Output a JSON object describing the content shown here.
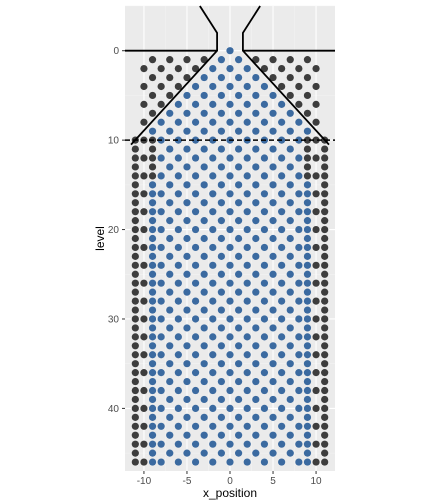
{
  "chart_data": {
    "type": "scatter",
    "title": "",
    "xlabel": "x_position",
    "ylabel": "level",
    "xlim": [
      -12.2,
      12.2
    ],
    "ylim": [
      47.0,
      -5.0
    ],
    "y_reversed": true,
    "x_ticks": [
      -10,
      -5,
      0,
      5,
      10
    ],
    "x_tick_labels": [
      "-10",
      "-5",
      "0",
      "5",
      "10"
    ],
    "y_ticks": [
      0,
      10,
      20,
      30,
      40
    ],
    "y_tick_labels": [
      "0",
      "10",
      "20",
      "30",
      "40"
    ],
    "grid": true,
    "legend": "none",
    "colors": {
      "panel_background": "#ebebeb",
      "grid_major": "#ffffff",
      "grid_minor": "#f2f2f2",
      "occupied_point": "#3b6aa0",
      "empty_point": "#3d3d3d",
      "wall_line": "#000000"
    },
    "series": [
      {
        "role": "empty",
        "rule": "points at integer level y from 1 to 46; for y <= 9 (funnel zone) x in {-10, -9, ..., 10} with x-parity equal to y-parity, shown only outside the funnel walls (|x| > y + 1); for y >= 10 (bin zone) x in {-11, -9, ..., 11}, odd x only, shown where not occupied"
      },
      {
        "role": "occupied",
        "rule": "points at integer level y with x-parity equal to y-parity; for y <= 9 within funnel |x| <= y + 1; for y >= 10 filled columns |x| <= 9, column x = +/-9 filled only from y = 15 downward"
      }
    ],
    "walls": [
      {
        "name": "left-funnel-wall",
        "points": [
          [
            -11.5,
            10.5
          ],
          [
            -1.5,
            0
          ],
          [
            -1.5,
            -2
          ],
          [
            -3.5,
            -5
          ]
        ]
      },
      {
        "name": "right-funnel-wall",
        "points": [
          [
            11.5,
            10.5
          ],
          [
            1.5,
            0
          ],
          [
            1.5,
            -2
          ],
          [
            3.5,
            -5
          ]
        ]
      },
      {
        "name": "left-top-ledge",
        "points": [
          [
            -12.2,
            0
          ],
          [
            -1.5,
            0
          ]
        ]
      },
      {
        "name": "right-top-ledge",
        "points": [
          [
            1.5,
            0
          ],
          [
            12.2,
            0
          ]
        ]
      },
      {
        "name": "bin-boundary-dashed",
        "points": [
          [
            -12.2,
            10
          ],
          [
            12.2,
            10
          ]
        ],
        "dashed": true
      }
    ]
  }
}
